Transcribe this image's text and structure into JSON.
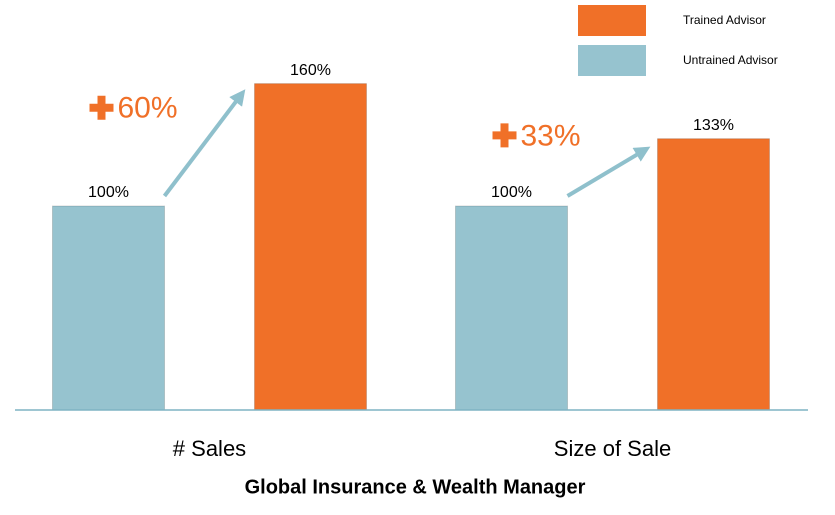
{
  "chart_data": {
    "type": "bar",
    "title": "Global Insurance & Wealth Manager",
    "categories": [
      "# Sales",
      "Size of Sale"
    ],
    "series": [
      {
        "name": "Untrained Advisor",
        "color": "#96c3cf",
        "values": [
          100,
          100
        ],
        "value_labels": [
          "100%",
          "100%"
        ]
      },
      {
        "name": "Trained Advisor",
        "color": "#f07028",
        "values": [
          160,
          133
        ],
        "value_labels": [
          "160%",
          "133%"
        ]
      }
    ],
    "annotations": [
      "60%",
      "33%"
    ],
    "ylim": [
      0,
      200
    ],
    "grid": false,
    "legend": "top-right"
  }
}
